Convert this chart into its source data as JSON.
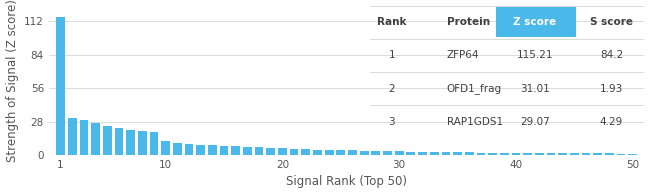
{
  "xlabel": "Signal Rank (Top 50)",
  "ylabel": "Strength of Signal (Z score)",
  "bar_color": "#4ab8e8",
  "xlim": [
    0.0,
    51
  ],
  "ylim": [
    0,
    125
  ],
  "yticks": [
    0,
    28,
    56,
    84,
    112
  ],
  "xticks": [
    1,
    10,
    20,
    30,
    40,
    50
  ],
  "n_bars": 50,
  "bar_values": [
    115.21,
    31.01,
    29.07,
    26.5,
    24.2,
    22.8,
    21.0,
    19.8,
    19.0,
    11.5,
    10.2,
    9.5,
    8.8,
    8.2,
    7.8,
    7.2,
    6.8,
    6.3,
    5.9,
    5.5,
    5.1,
    4.8,
    4.5,
    4.2,
    4.0,
    3.8,
    3.6,
    3.4,
    3.2,
    3.0,
    2.85,
    2.7,
    2.55,
    2.4,
    2.3,
    2.2,
    2.1,
    2.0,
    1.92,
    1.84,
    1.76,
    1.68,
    1.62,
    1.56,
    1.5,
    1.44,
    1.38,
    1.32,
    1.26,
    1.2
  ],
  "table_headers": [
    "Rank",
    "Protein",
    "Z score",
    "S score"
  ],
  "table_rows": [
    [
      "1",
      "ZFP64",
      "115.21",
      "84.2"
    ],
    [
      "2",
      "OFD1_frag",
      "31.01",
      "1.93"
    ],
    [
      "3",
      "RAP1GDS1",
      "29.07",
      "4.29"
    ]
  ],
  "zscore_header_color": "#4ab8e8",
  "header_text_color_zscore": "#ffffff",
  "header_text_color": "#404040",
  "row_text_color": "#404040",
  "line_color": "#cccccc",
  "background_color": "#ffffff",
  "grid_color": "#cccccc",
  "tick_fontsize": 7.5,
  "label_fontsize": 8.5,
  "table_fontsize": 7.5
}
